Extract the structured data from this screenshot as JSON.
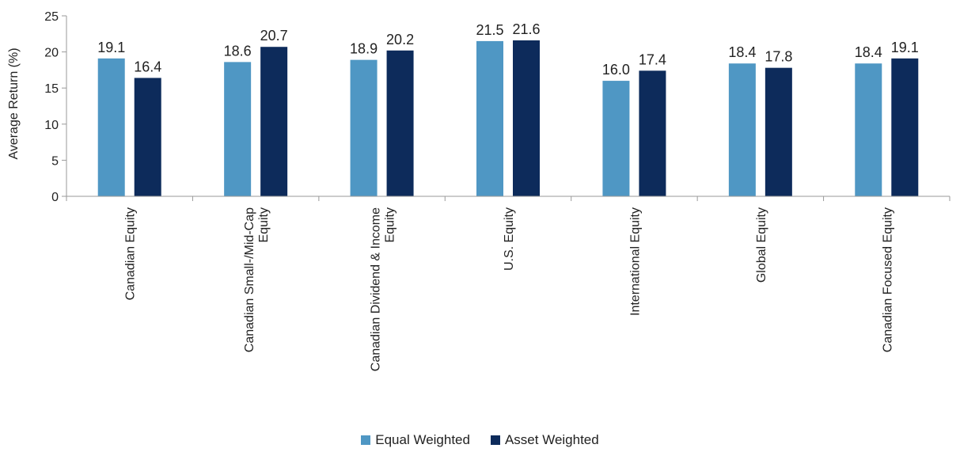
{
  "chart_data": {
    "type": "bar",
    "categories": [
      [
        "Canadian Equity"
      ],
      [
        "Canadian Small-/Mid-Cap",
        "Equity"
      ],
      [
        "Canadian Dividend & Income",
        "Equity"
      ],
      [
        "U.S. Equity"
      ],
      [
        "International Equity"
      ],
      [
        "Global Equity"
      ],
      [
        "Canadian Focused Equity"
      ]
    ],
    "series": [
      {
        "name": "Equal Weighted",
        "color": "#4f97c4",
        "values": [
          19.1,
          18.6,
          18.9,
          21.5,
          16.0,
          18.4,
          18.4
        ]
      },
      {
        "name": "Asset Weighted",
        "color": "#0d2b5b",
        "values": [
          16.4,
          20.7,
          20.2,
          21.6,
          17.4,
          17.8,
          19.1
        ]
      }
    ],
    "ylabel": "Average Return (%)",
    "ylim": [
      0,
      25
    ],
    "yticks": [
      0,
      5,
      10,
      15,
      20,
      25
    ],
    "grid": false,
    "legend_position": "bottom",
    "value_format_decimals": 1
  }
}
